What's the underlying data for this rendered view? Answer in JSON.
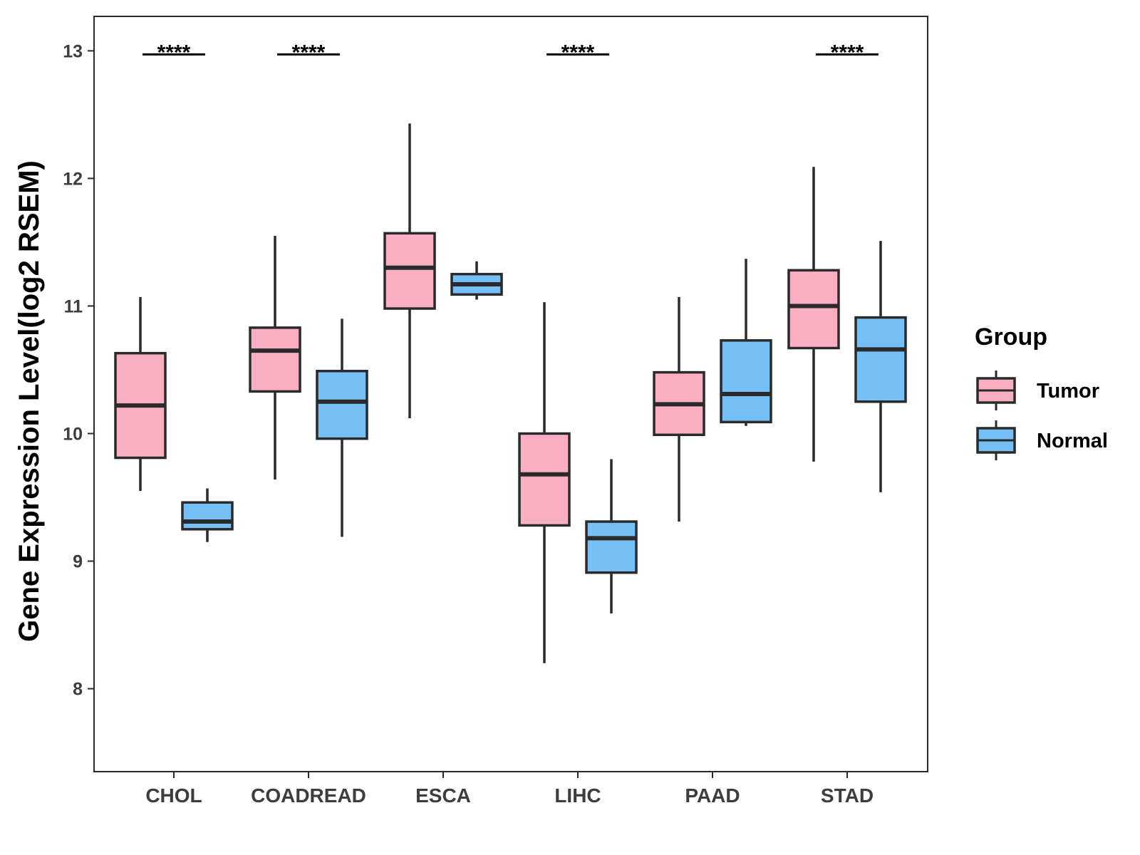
{
  "chart_data": {
    "type": "boxplot",
    "title": "",
    "xlabel": "",
    "ylabel": "Gene Expression Level(log2 RSEM)",
    "ylim": [
      7.35,
      13.27
    ],
    "yticks": [
      8,
      9,
      10,
      11,
      12,
      13
    ],
    "categories": [
      "CHOL",
      "COADREAD",
      "ESCA",
      "LIHC",
      "PAAD",
      "STAD"
    ],
    "legend": {
      "title": "Group",
      "position": "right",
      "items": [
        {
          "label": "Tumor",
          "color": "#f9afc1"
        },
        {
          "label": "Normal",
          "color": "#74bff6"
        }
      ]
    },
    "series": [
      {
        "name": "Tumor",
        "color": "#f9afc1",
        "boxes": [
          {
            "category": "CHOL",
            "min": 9.55,
            "q1": 9.81,
            "median": 10.22,
            "q3": 10.63,
            "max": 11.07
          },
          {
            "category": "COADREAD",
            "min": 9.64,
            "q1": 10.33,
            "median": 10.65,
            "q3": 10.83,
            "max": 11.55
          },
          {
            "category": "ESCA",
            "min": 10.12,
            "q1": 10.98,
            "median": 11.3,
            "q3": 11.57,
            "max": 12.43
          },
          {
            "category": "LIHC",
            "min": 8.2,
            "q1": 9.28,
            "median": 9.68,
            "q3": 10.0,
            "max": 11.03
          },
          {
            "category": "PAAD",
            "min": 9.31,
            "q1": 9.99,
            "median": 10.23,
            "q3": 10.48,
            "max": 11.07
          },
          {
            "category": "STAD",
            "min": 9.78,
            "q1": 10.67,
            "median": 11.0,
            "q3": 11.28,
            "max": 12.09
          }
        ]
      },
      {
        "name": "Normal",
        "color": "#74bff6",
        "boxes": [
          {
            "category": "CHOL",
            "min": 9.15,
            "q1": 9.25,
            "median": 9.31,
            "q3": 9.46,
            "max": 9.57
          },
          {
            "category": "COADREAD",
            "min": 9.19,
            "q1": 9.96,
            "median": 10.25,
            "q3": 10.49,
            "max": 10.9
          },
          {
            "category": "ESCA",
            "min": 11.05,
            "q1": 11.09,
            "median": 11.17,
            "q3": 11.25,
            "max": 11.35
          },
          {
            "category": "LIHC",
            "min": 8.59,
            "q1": 8.91,
            "median": 9.18,
            "q3": 9.31,
            "max": 9.8
          },
          {
            "category": "PAAD",
            "min": 10.06,
            "q1": 10.09,
            "median": 10.31,
            "q3": 10.73,
            "max": 11.37
          },
          {
            "category": "STAD",
            "min": 9.54,
            "q1": 10.25,
            "median": 10.66,
            "q3": 10.91,
            "max": 11.51
          }
        ]
      }
    ],
    "significance": [
      {
        "category": "CHOL",
        "label": "****"
      },
      {
        "category": "COADREAD",
        "label": "****"
      },
      {
        "category": "LIHC",
        "label": "****"
      },
      {
        "category": "STAD",
        "label": "****"
      }
    ]
  }
}
